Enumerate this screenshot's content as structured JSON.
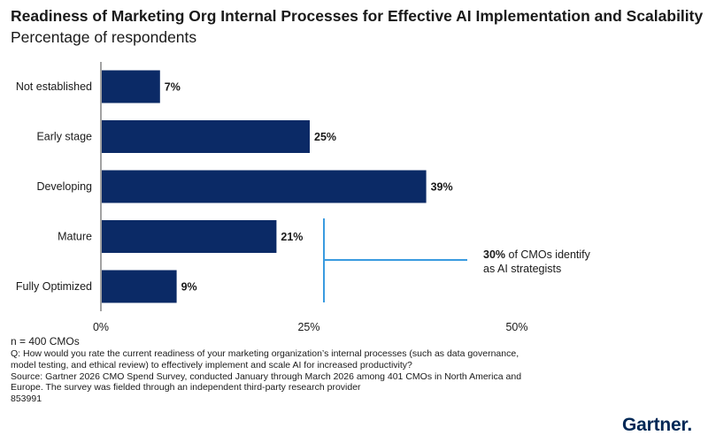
{
  "chart_title": "Readiness of Marketing Org Internal Processes for Effective AI Implementation and Scalability",
  "chart_subtitle": "Percentage of respondents",
  "chart_data": {
    "type": "bar",
    "orientation": "horizontal",
    "title": "Readiness of Marketing Org Internal Processes for Effective AI Implementation and Scalability",
    "subtitle": "Percentage of respondents",
    "categories": [
      "Not established",
      "Early stage",
      "Developing",
      "Mature",
      "Fully Optimized"
    ],
    "values": [
      7,
      25,
      39,
      21,
      9
    ],
    "value_labels": [
      "7%",
      "25%",
      "39%",
      "21%",
      "9%"
    ],
    "xlim": [
      0,
      50
    ],
    "x_ticks": [
      "0%",
      "25%",
      "50%"
    ],
    "grid": false,
    "bar_color": "#0b2a66",
    "annotation": {
      "bold": "30%",
      "text": " of CMOs identify",
      "text2": "as AI strategists",
      "color": "#3a9be0"
    }
  },
  "notes": {
    "n": "n = 400 CMOs",
    "question": "Q: How would you rate the current readiness of your marketing organization’s internal processes (such as data governance, model testing, and ethical review) to effectively implement and scale AI for increased productivity?",
    "source": "Source: Gartner 2026 CMO Spend Survey, conducted January through March 2026 among 401 CMOs in North America and Europe.  The survey was fielded through an independent third-party research provider",
    "id": "853991"
  },
  "brand": {
    "name": "Gartner",
    "dot": "."
  }
}
